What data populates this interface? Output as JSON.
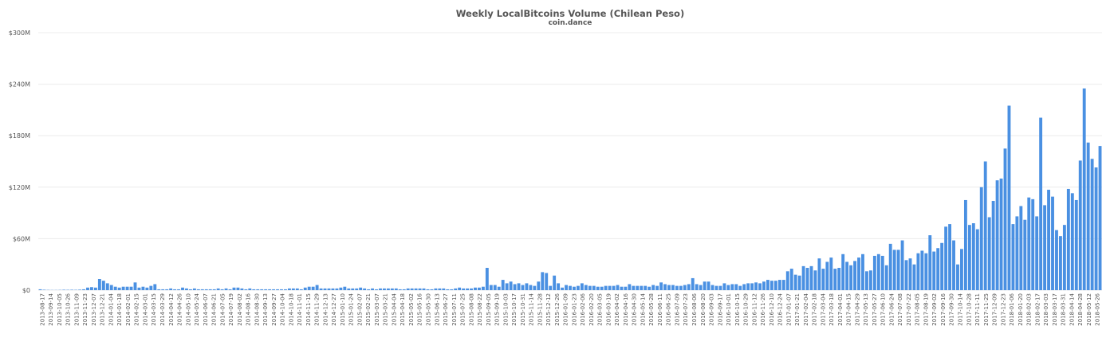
{
  "chart_data": {
    "type": "bar",
    "title": "Weekly LocalBitcoins Volume (Chilean Peso)",
    "subtitle": "coin.dance",
    "xlabel": "",
    "ylabel": "",
    "ylim": [
      0,
      300
    ],
    "y_ticks": [
      {
        "value": 0,
        "label": "$0"
      },
      {
        "value": 60,
        "label": "$60M"
      },
      {
        "value": 120,
        "label": "$120M"
      },
      {
        "value": 180,
        "label": "$180M"
      },
      {
        "value": 240,
        "label": "$240M"
      },
      {
        "value": 300,
        "label": "$300M"
      }
    ],
    "grid": true,
    "bar_color": "#4a90e2",
    "x_tick_labels": [
      "2013-08-17",
      "2013-09-14",
      "2013-10-05",
      "2013-10-26",
      "2013-11-09",
      "2013-11-23",
      "2013-12-07",
      "2013-12-21",
      "2014-01-04",
      "2014-01-18",
      "2014-02-01",
      "2014-02-15",
      "2014-03-01",
      "2014-03-15",
      "2014-03-29",
      "2014-04-12",
      "2014-04-26",
      "2014-05-10",
      "2014-05-24",
      "2014-06-07",
      "2014-06-21",
      "2014-07-05",
      "2014-07-19",
      "2014-08-02",
      "2014-08-16",
      "2014-08-30",
      "2014-09-13",
      "2014-09-27",
      "2014-10-04",
      "2014-10-18",
      "2014-11-01",
      "2014-11-15",
      "2014-11-29",
      "2014-12-13",
      "2014-12-27",
      "2015-01-10",
      "2015-01-24",
      "2015-02-07",
      "2015-02-21",
      "2015-03-07",
      "2015-03-21",
      "2015-04-04",
      "2015-04-18",
      "2015-05-02",
      "2015-05-16",
      "2015-05-30",
      "2015-06-13",
      "2015-06-27",
      "2015-07-11",
      "2015-07-25",
      "2015-08-08",
      "2015-08-22",
      "2015-09-05",
      "2015-09-19",
      "2015-10-03",
      "2015-10-17",
      "2015-10-31",
      "2015-11-14",
      "2015-11-28",
      "2015-12-12",
      "2015-12-26",
      "2016-01-09",
      "2016-01-23",
      "2016-02-06",
      "2016-02-20",
      "2016-03-05",
      "2016-03-19",
      "2016-04-02",
      "2016-04-16",
      "2016-04-30",
      "2016-05-14",
      "2016-05-28",
      "2016-06-11",
      "2016-06-25",
      "2016-07-09",
      "2016-07-23",
      "2016-08-06",
      "2016-08-20",
      "2016-09-03",
      "2016-09-17",
      "2016-10-01",
      "2016-10-15",
      "2016-10-29",
      "2016-11-12",
      "2016-11-26",
      "2016-12-10",
      "2016-12-24",
      "2017-01-07",
      "2017-01-21",
      "2017-02-04",
      "2017-02-18",
      "2017-03-04",
      "2017-03-18",
      "2017-04-01",
      "2017-04-15",
      "2017-04-29",
      "2017-05-13",
      "2017-05-27",
      "2017-06-10",
      "2017-06-24",
      "2017-07-08",
      "2017-07-22",
      "2017-08-05",
      "2017-08-19",
      "2017-09-02",
      "2017-09-16",
      "2017-09-30",
      "2017-10-14",
      "2017-10-28",
      "2017-11-11",
      "2017-11-25",
      "2017-12-09",
      "2017-12-23",
      "2018-01-06",
      "2018-01-20",
      "2018-02-03",
      "2018-02-17",
      "2018-03-03",
      "2018-03-17",
      "2018-03-31",
      "2018-04-14",
      "2018-04-28",
      "2018-05-12",
      "2018-05-26"
    ],
    "values": [
      1,
      0.5,
      0.3,
      0.2,
      0.2,
      0.3,
      0.5,
      0.4,
      0.5,
      0.4,
      0.6,
      1,
      3,
      3.5,
      3,
      13,
      11,
      8,
      6,
      4,
      3,
      4,
      4,
      4,
      9,
      3,
      4,
      3,
      5,
      7,
      1,
      1,
      1,
      2,
      1,
      1,
      3,
      2,
      1,
      2,
      1,
      1,
      1,
      1,
      1,
      2,
      1,
      2,
      1,
      3,
      3,
      2,
      1,
      2,
      1,
      1,
      1,
      1,
      1,
      1,
      1,
      1,
      1,
      2,
      2,
      2,
      1,
      3,
      4,
      4,
      6,
      2,
      2,
      2,
      2,
      2,
      3,
      4,
      2,
      2,
      2,
      3,
      2,
      1,
      2,
      1,
      2,
      2,
      2,
      2,
      2,
      1,
      1,
      2,
      2,
      2,
      2,
      2,
      1,
      1,
      2,
      2,
      2,
      1,
      1,
      2,
      3,
      2,
      2,
      2,
      3,
      3,
      4,
      26,
      6,
      6,
      4,
      12,
      8,
      10,
      7,
      8,
      6,
      8,
      6,
      5,
      10,
      21,
      20,
      5,
      17,
      8,
      3,
      6,
      5,
      4,
      5,
      8,
      6,
      5,
      5,
      4,
      4,
      5,
      5,
      5,
      6,
      4,
      4,
      7,
      5,
      5,
      5,
      5,
      4,
      6,
      5,
      9,
      7,
      6,
      6,
      5,
      5,
      6,
      7,
      14,
      7,
      6,
      10,
      10,
      6,
      5,
      5,
      8,
      6,
      7,
      7,
      5,
      7,
      8,
      8,
      9,
      8,
      10,
      12,
      11,
      11,
      12,
      12,
      22,
      25,
      18,
      17,
      28,
      26,
      28,
      23,
      37,
      25,
      33,
      38,
      25,
      26,
      42,
      33,
      29,
      34,
      38,
      42,
      22,
      23,
      40,
      42,
      40,
      29,
      54,
      47,
      47,
      58,
      35,
      37,
      30,
      43,
      46,
      43,
      64,
      45,
      49,
      55,
      74,
      77,
      58,
      30,
      48,
      105,
      76,
      78,
      71,
      120,
      150,
      85,
      104,
      128,
      130,
      165,
      215,
      77,
      86,
      98,
      82,
      108,
      106,
      86,
      201,
      99,
      117,
      109,
      70,
      63,
      76,
      118,
      113,
      105,
      151,
      235,
      172,
      153,
      143,
      168
    ]
  }
}
